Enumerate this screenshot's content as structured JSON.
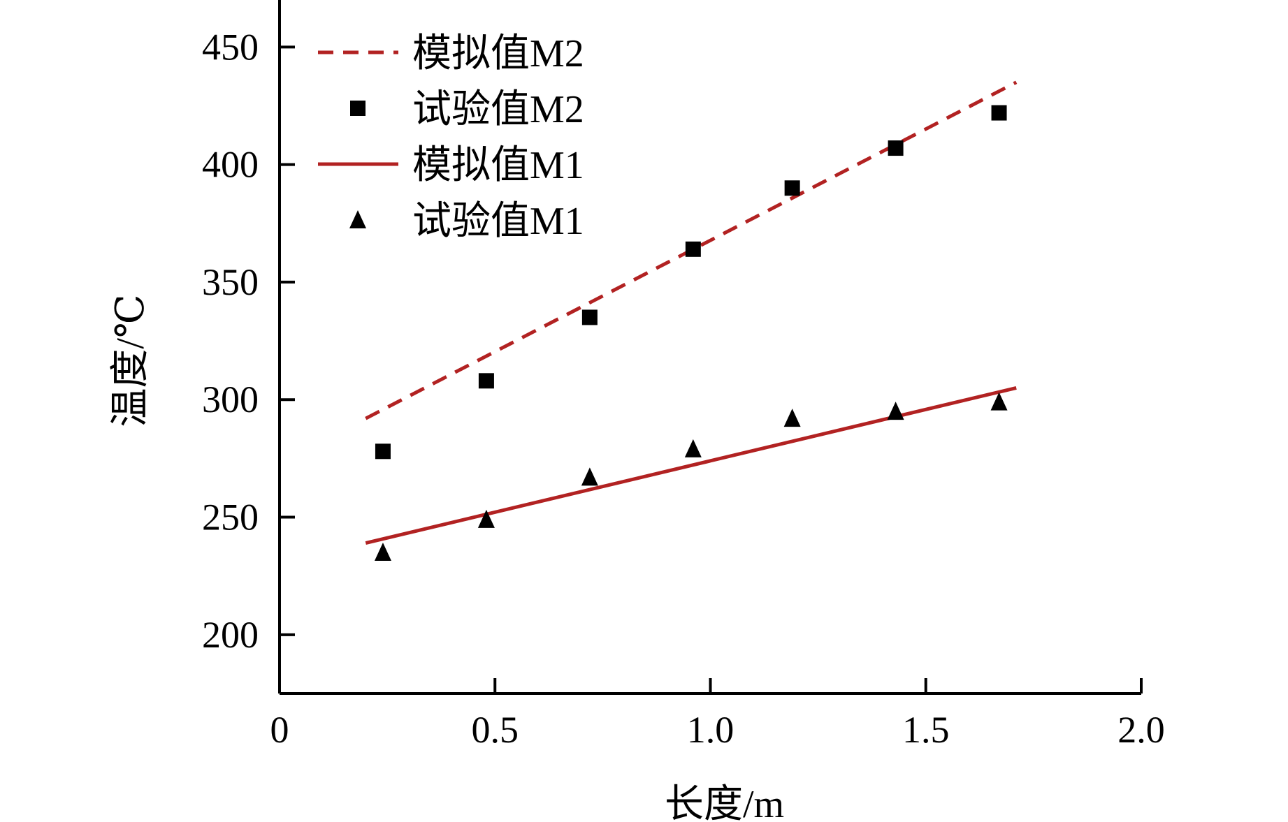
{
  "chart_data": {
    "type": "line",
    "title": "",
    "xlabel": "长度/m",
    "ylabel": "温度/℃",
    "xlim": [
      0,
      2.0
    ],
    "ylim": [
      175,
      470
    ],
    "x_ticks": [
      0,
      0.5,
      1.0,
      1.5,
      2.0
    ],
    "x_tick_labels": [
      "0",
      "0.5",
      "1.0",
      "1.5",
      "2.0"
    ],
    "y_ticks": [
      200,
      250,
      300,
      350,
      400,
      450
    ],
    "y_tick_labels": [
      "200",
      "250",
      "300",
      "350",
      "400",
      "450"
    ],
    "grid": false,
    "legend_position": "top-left",
    "series": [
      {
        "name": "模拟值M2",
        "kind": "line",
        "style": "dashed",
        "color": "#b22222",
        "x": [
          0.2,
          1.71
        ],
        "y": [
          292,
          435
        ]
      },
      {
        "name": "试验值M2",
        "kind": "scatter",
        "marker": "square",
        "color": "#000000",
        "x": [
          0.24,
          0.48,
          0.72,
          0.96,
          1.19,
          1.43,
          1.67
        ],
        "y": [
          278,
          308,
          335,
          364,
          390,
          407,
          422
        ]
      },
      {
        "name": "模拟值M1",
        "kind": "line",
        "style": "solid",
        "color": "#b22222",
        "x": [
          0.2,
          1.71
        ],
        "y": [
          239,
          305
        ]
      },
      {
        "name": "试验值M1",
        "kind": "scatter",
        "marker": "triangle",
        "color": "#000000",
        "x": [
          0.24,
          0.48,
          0.72,
          0.96,
          1.19,
          1.43,
          1.67
        ],
        "y": [
          235,
          249,
          267,
          279,
          292,
          295,
          299
        ]
      }
    ]
  }
}
